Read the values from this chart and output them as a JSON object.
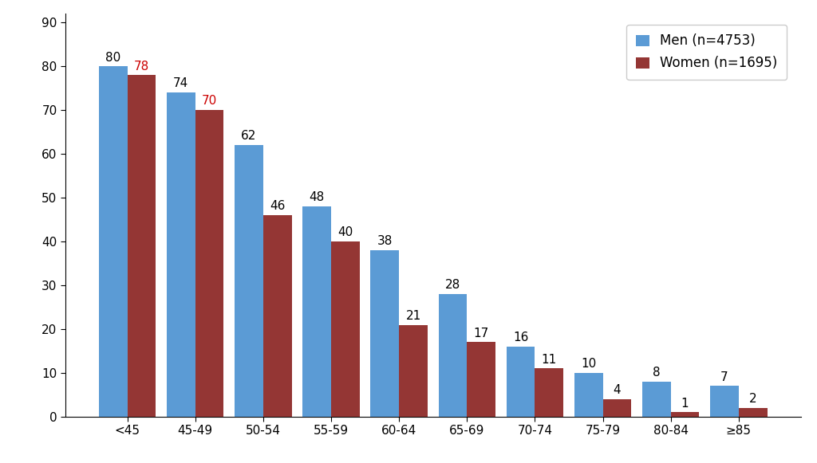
{
  "categories": [
    "<45",
    "45-49",
    "50-54",
    "55-59",
    "60-64",
    "65-69",
    "70-74",
    "75-79",
    "80-84",
    "≥85"
  ],
  "men_values": [
    80,
    74,
    62,
    48,
    38,
    28,
    16,
    10,
    8,
    7
  ],
  "women_values": [
    78,
    70,
    46,
    40,
    21,
    17,
    11,
    4,
    1,
    2
  ],
  "men_color": "#5B9BD5",
  "women_color": "#943634",
  "men_label": "Men (n=4753)",
  "women_label": "Women (n=1695)",
  "ylim": [
    0,
    92
  ],
  "yticks": [
    0,
    10,
    20,
    30,
    40,
    50,
    60,
    70,
    80,
    90
  ],
  "bar_width": 0.42,
  "label_fontsize": 11,
  "tick_fontsize": 11,
  "legend_fontsize": 12,
  "special_red_indices": [
    0,
    1
  ],
  "women_red_color": "#CC0000",
  "women_black_color": "black",
  "men_label_color": "black",
  "background_color": "#ffffff"
}
